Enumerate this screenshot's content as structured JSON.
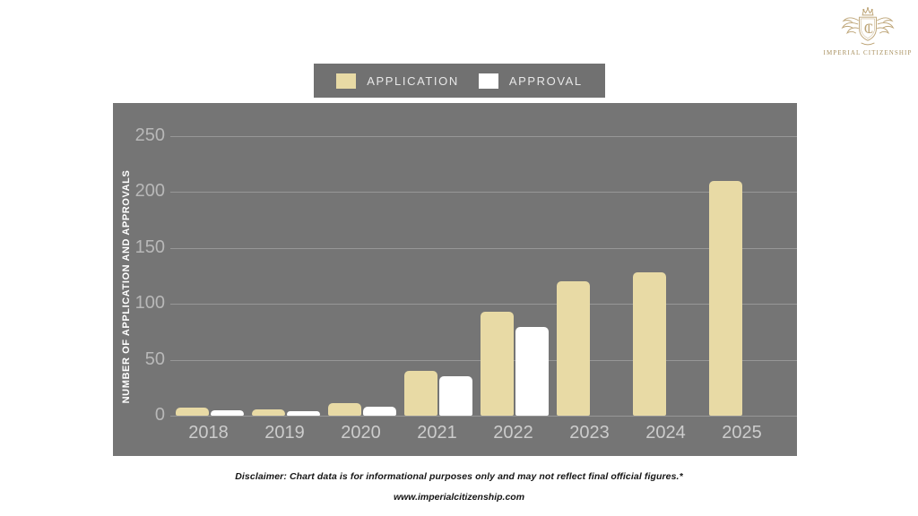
{
  "logo": {
    "brand": "IMPERIAL CITIZENSHIP",
    "monogram": "IC",
    "color": "#b89a68"
  },
  "legend": {
    "items": [
      {
        "label": "APPLICATION",
        "color": "#e8daa5"
      },
      {
        "label": "APPROVAL",
        "color": "#ffffff"
      }
    ]
  },
  "chart_data": {
    "type": "bar",
    "categories": [
      "2018",
      "2019",
      "2020",
      "2021",
      "2022",
      "2023",
      "2024",
      "2025"
    ],
    "series": [
      {
        "name": "APPLICATION",
        "color": "#e8daa5",
        "values": [
          7,
          6,
          11,
          40,
          93,
          120,
          128,
          210
        ]
      },
      {
        "name": "APPROVAL",
        "color": "#ffffff",
        "values": [
          5,
          4,
          8,
          35,
          79,
          0,
          0,
          0
        ]
      }
    ],
    "title": "",
    "xlabel": "",
    "ylabel": "NUMBER OF APPLICATION AND APPROVALS",
    "yticks": [
      0,
      50,
      100,
      150,
      200,
      250
    ],
    "ylim": [
      0,
      250
    ],
    "grid": true,
    "legend_position": "top-center",
    "panel_bg": "#757575",
    "tick_color": "#b8b8b8"
  },
  "footer": {
    "disclaimer": "Disclaimer: Chart data is for informational purposes only and may not reflect final official figures.*",
    "website": "www.imperialcitizenship.com"
  }
}
